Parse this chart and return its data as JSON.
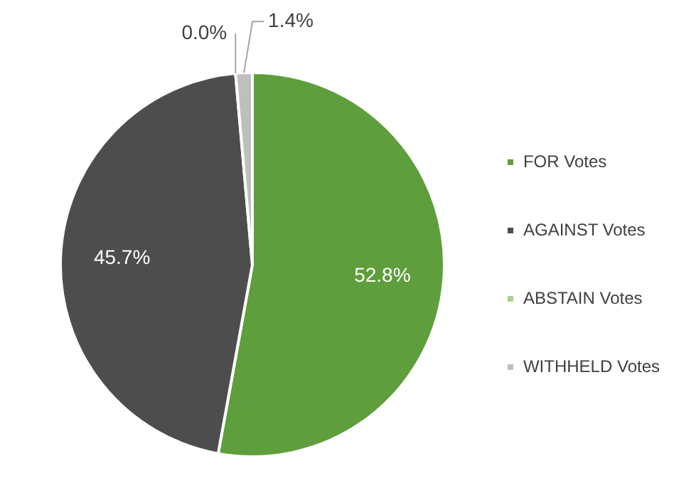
{
  "chart_data": {
    "type": "pie",
    "categories": [
      "FOR Votes",
      "AGAINST Votes",
      "ABSTAIN Votes",
      "WITHHELD Votes"
    ],
    "values": [
      52.8,
      45.7,
      0.0,
      1.4
    ],
    "colors": [
      "#5f9e3c",
      "#4d4d4d",
      "#a9d18e",
      "#bfbfbf"
    ],
    "value_labels": [
      "52.8%",
      "45.7%",
      "0.0%",
      "1.4%"
    ],
    "legend": "right"
  }
}
